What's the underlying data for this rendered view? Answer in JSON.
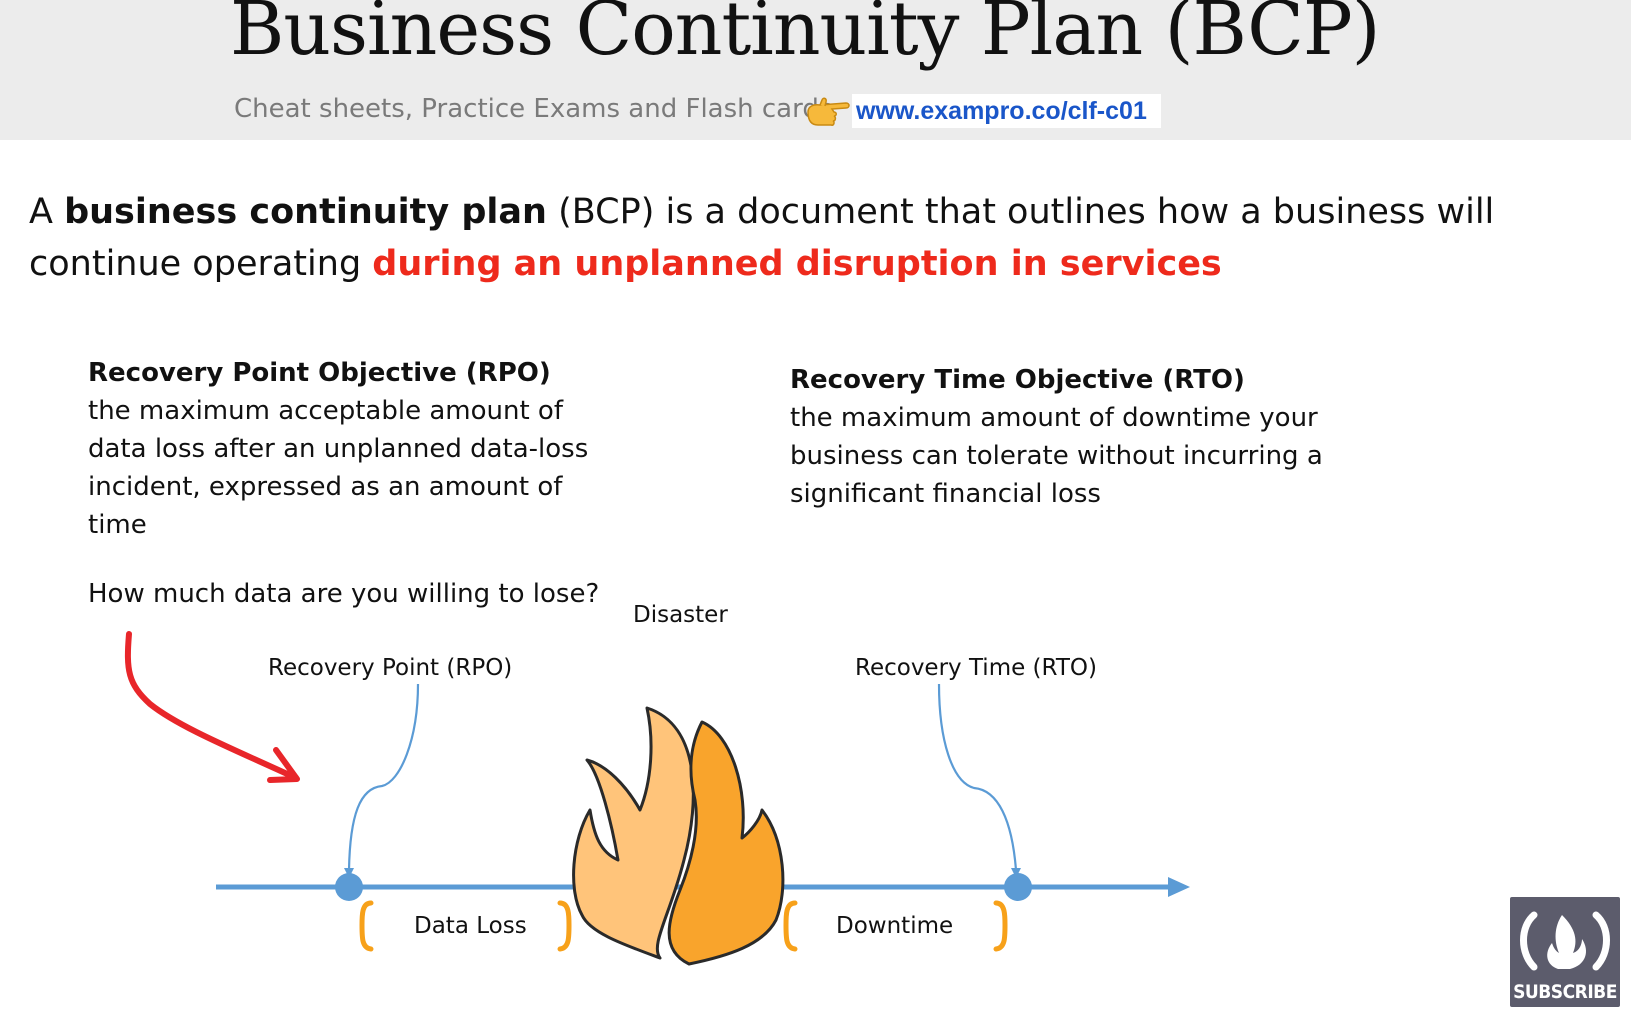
{
  "header": {
    "title": "Business Continuity Plan (BCP)",
    "subtitle": "Cheat sheets, Practice Exams and Flash cards",
    "link_text": "www.exampro.co/clf-c01",
    "pointer_icon": "pointing-hand-icon"
  },
  "intro": {
    "prefix": "A ",
    "term": "business continuity plan",
    "middle": " (BCP) is a document that outlines how a business will continue operating ",
    "highlight": "during an unplanned disruption in services"
  },
  "rpo": {
    "heading": "Recovery Point Objective (RPO)",
    "description": "the maximum acceptable amount of data loss after an unplanned data-loss incident, expressed as an amount of time",
    "question": "How much data are you willing to lose?"
  },
  "rto": {
    "heading": "Recovery Time Objective (RTO)",
    "description": "the maximum amount of downtime your business can tolerate without incurring a significant financial loss"
  },
  "diagram": {
    "disaster_label": "Disaster",
    "recovery_point_label": "Recovery Point (RPO)",
    "recovery_time_label": "Recovery Time (RTO)",
    "data_loss_label": "Data Loss",
    "downtime_label": "Downtime",
    "colors": {
      "timeline": "#5b9bd5",
      "flame_light": "#ffc47a",
      "flame_dark": "#f9a42c",
      "bracket": "#f7a11a",
      "annotation_arrow": "#e8262a"
    }
  },
  "badge": {
    "icon": "freecodecamp-logo-icon",
    "label": "SUBSCRIBE"
  }
}
